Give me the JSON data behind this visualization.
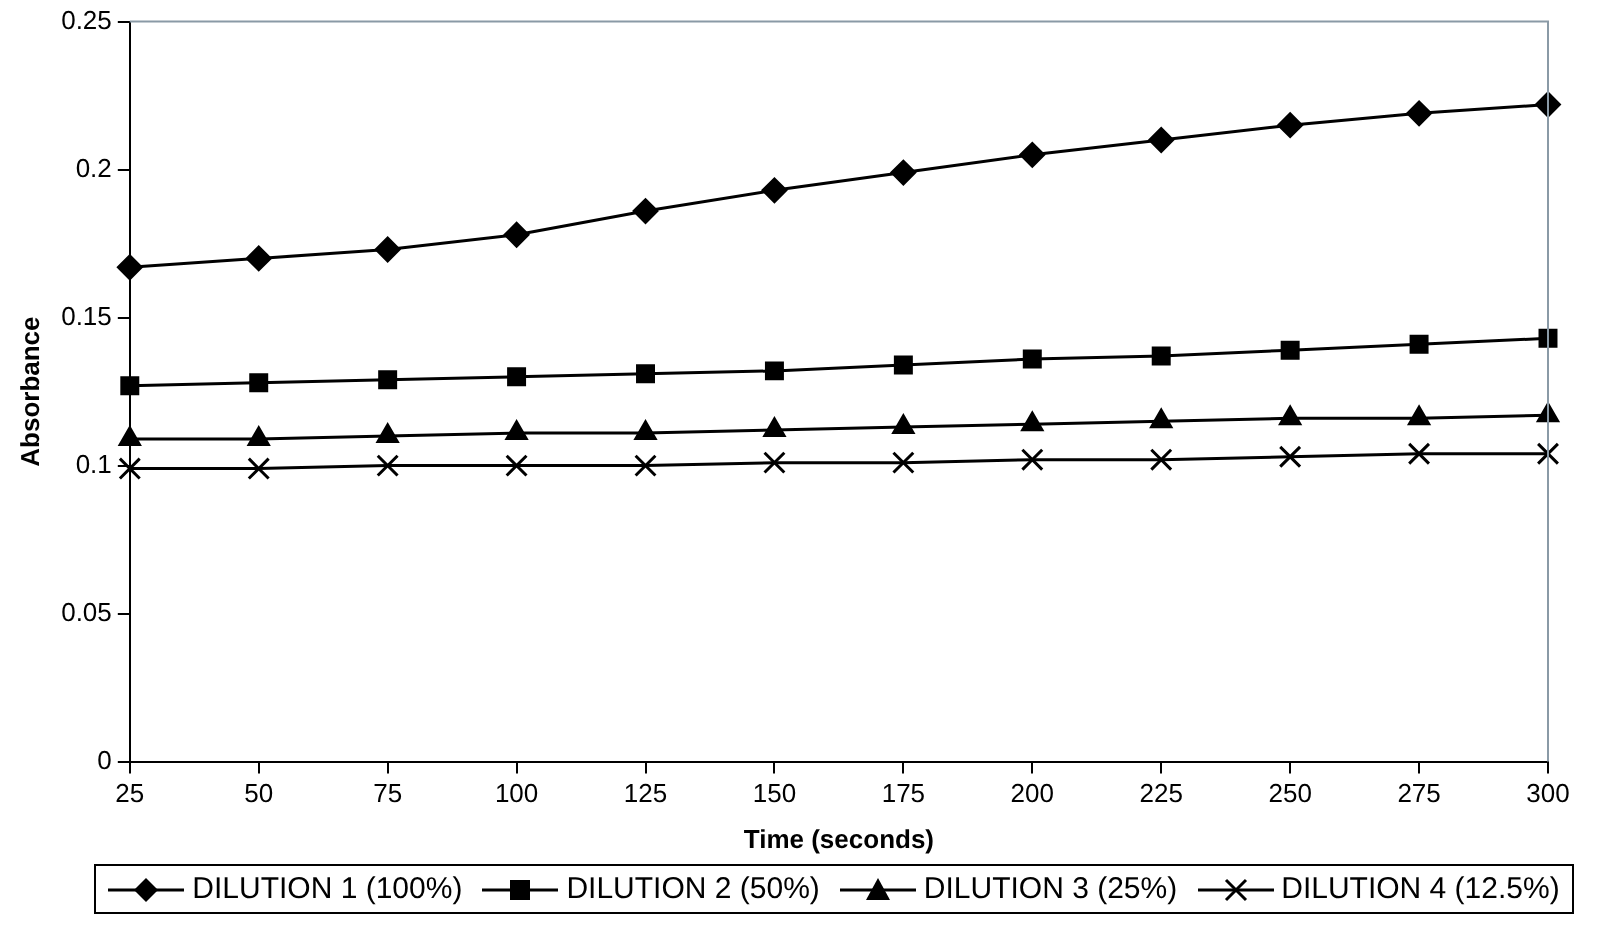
{
  "chart_data": {
    "type": "line",
    "xlabel": "Time (seconds)",
    "ylabel": "Absorbance",
    "x": [
      25,
      50,
      75,
      100,
      125,
      150,
      175,
      200,
      225,
      250,
      275,
      300
    ],
    "xlim": [
      25,
      300
    ],
    "xticks": [
      25,
      50,
      75,
      100,
      125,
      150,
      175,
      200,
      225,
      250,
      275,
      300
    ],
    "ylim": [
      0,
      0.25
    ],
    "yticks": [
      0,
      0.05,
      0.1,
      0.15,
      0.2,
      0.25
    ],
    "grid": false,
    "legend": "bottom",
    "line_style": "solid",
    "series": [
      {
        "name": "DILUTION 1 (100%)",
        "color": "#000000",
        "marker": "diamond",
        "values": [
          0.167,
          0.17,
          0.173,
          0.178,
          0.186,
          0.193,
          0.199,
          0.205,
          0.21,
          0.215,
          0.219,
          0.222
        ]
      },
      {
        "name": "DILUTION 2 (50%)",
        "color": "#000000",
        "marker": "square",
        "values": [
          0.127,
          0.128,
          0.129,
          0.13,
          0.131,
          0.132,
          0.134,
          0.136,
          0.137,
          0.139,
          0.141,
          0.143
        ]
      },
      {
        "name": "DILUTION 3 (25%)",
        "color": "#000000",
        "marker": "triangle",
        "values": [
          0.109,
          0.109,
          0.11,
          0.111,
          0.111,
          0.112,
          0.113,
          0.114,
          0.115,
          0.116,
          0.116,
          0.117
        ]
      },
      {
        "name": "DILUTION 4 (12.5%)",
        "color": "#000000",
        "marker": "cross",
        "values": [
          0.099,
          0.099,
          0.1,
          0.1,
          0.1,
          0.101,
          0.101,
          0.102,
          0.102,
          0.103,
          0.104,
          0.104
        ]
      }
    ]
  }
}
